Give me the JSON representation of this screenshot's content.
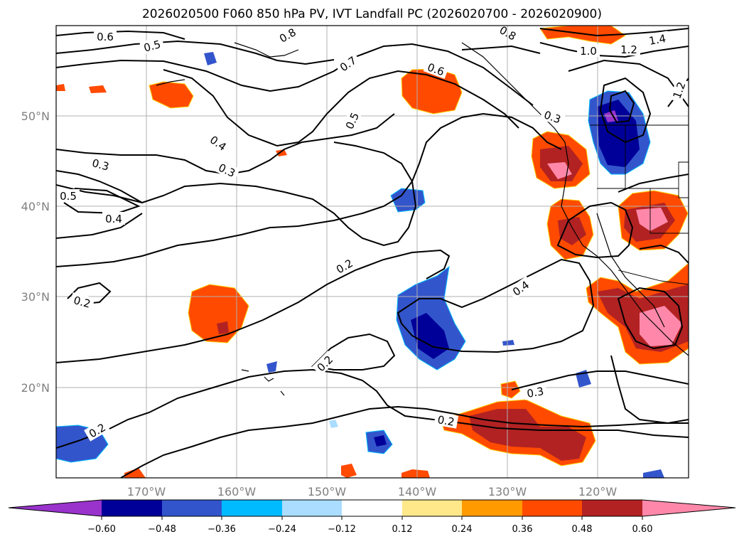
{
  "title": "2026020500 F060 850 hPa PV, IVT Landfall PC (2026020700 - 2026020900)",
  "lat_labels": [
    "50°N",
    "40°N",
    "30°N",
    "20°N"
  ],
  "lon_labels": [
    "170°W",
    "160°W",
    "150°W",
    "140°W",
    "130°W",
    "120°W"
  ],
  "contour_labels": [
    {
      "text": "0.6"
    },
    {
      "text": "0.5"
    },
    {
      "text": "0.8"
    },
    {
      "text": "0.7"
    },
    {
      "text": "0.6"
    },
    {
      "text": "0.8"
    },
    {
      "text": "1.0"
    },
    {
      "text": "1.2"
    },
    {
      "text": "1.4"
    },
    {
      "text": "1.2"
    },
    {
      "text": "0.5"
    },
    {
      "text": "0.4"
    },
    {
      "text": "0.3"
    },
    {
      "text": "0.3"
    },
    {
      "text": "0.5"
    },
    {
      "text": "0.4"
    },
    {
      "text": "0.2"
    },
    {
      "text": "0.2"
    },
    {
      "text": "0.4"
    },
    {
      "text": "0.2"
    },
    {
      "text": "0.3"
    },
    {
      "text": "0.2"
    },
    {
      "text": "0.2"
    },
    {
      "text": "0.3"
    }
  ],
  "colorbar": {
    "ticks": [
      "−0.60",
      "−0.48",
      "−0.36",
      "−0.24",
      "−0.12",
      "0.12",
      "0.24",
      "0.36",
      "0.48",
      "0.60"
    ],
    "colors": [
      "#9933cc",
      "#000099",
      "#3355cc",
      "#00bbff",
      "#aaddff",
      "#ffffff",
      "#ffe88a",
      "#ff9a00",
      "#ff4a00",
      "#b22222",
      "#ff88aa"
    ]
  }
}
